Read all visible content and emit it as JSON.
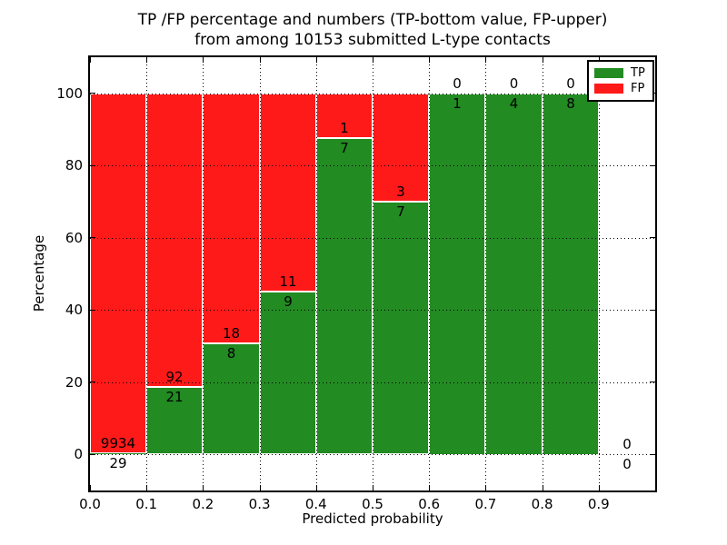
{
  "title": {
    "line1": "TP /FP percentage and numbers (TP-bottom value, FP-upper)",
    "line2": "from among 10153 submitted L-type contacts"
  },
  "axes": {
    "xlabel": "Predicted probability",
    "ylabel": "Percentage",
    "x_tick_labels": [
      "0.0",
      "0.1",
      "0.2",
      "0.3",
      "0.4",
      "0.5",
      "0.6",
      "0.7",
      "0.8",
      "0.9"
    ],
    "y_tick_labels": [
      "0",
      "20",
      "40",
      "60",
      "80",
      "100"
    ]
  },
  "legend": {
    "items": [
      {
        "label": "TP",
        "color": "#228b22"
      },
      {
        "label": "FP",
        "color": "#ff1a1a"
      }
    ]
  },
  "chart_data": {
    "type": "bar",
    "stacked": true,
    "normalized": "percent",
    "title": "TP /FP percentage and numbers (TP-bottom value, FP-upper) from among 10153 submitted L-type contacts",
    "xlabel": "Predicted probability",
    "ylabel": "Percentage",
    "xlim": [
      0.0,
      1.0
    ],
    "ylim": [
      -10,
      110
    ],
    "x_tick_values": [
      0,
      0.1,
      0.2,
      0.3,
      0.4,
      0.5,
      0.6,
      0.7,
      0.8,
      0.9
    ],
    "y_tick_values": [
      0,
      20,
      40,
      60,
      80,
      100
    ],
    "grid": true,
    "grid_style": "dotted",
    "legend_position": "upper right",
    "total_submitted": 10153,
    "bin_width": 0.1,
    "categories": [
      "0.0-0.1",
      "0.1-0.2",
      "0.2-0.3",
      "0.3-0.4",
      "0.4-0.5",
      "0.5-0.6",
      "0.6-0.7",
      "0.7-0.8",
      "0.8-0.9",
      "0.9-1.0"
    ],
    "series": [
      {
        "name": "TP",
        "position": "bottom",
        "color": "#228b22",
        "values": [
          29,
          21,
          8,
          9,
          7,
          7,
          1,
          4,
          8,
          0
        ]
      },
      {
        "name": "FP",
        "position": "top",
        "color": "#ff1a1a",
        "values": [
          9934,
          92,
          18,
          11,
          1,
          3,
          0,
          0,
          0,
          0
        ]
      }
    ],
    "tp_percent": [
      0.29,
      18.58,
      30.77,
      45.0,
      87.5,
      70.0,
      100.0,
      100.0,
      100.0,
      0.0
    ],
    "fp_percent": [
      99.71,
      81.42,
      69.23,
      55.0,
      12.5,
      30.0,
      0.0,
      0.0,
      0.0,
      0.0
    ]
  }
}
